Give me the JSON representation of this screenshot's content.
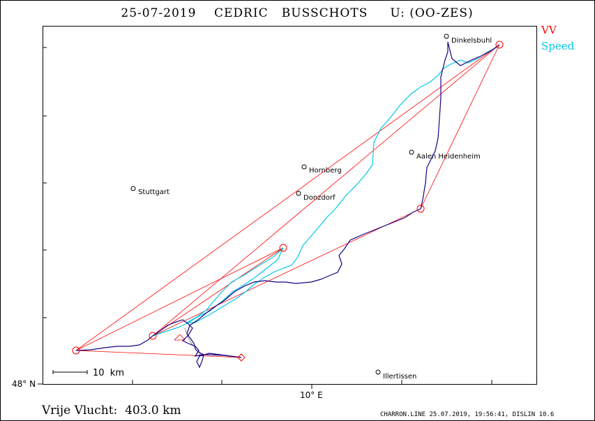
{
  "title": "25-07-2019    CEDRIC   BUSSCHOTS     U: (OO-ZES)",
  "legend": {
    "vv": "VV",
    "speed": "Speed",
    "vv_color": "#ff0000",
    "speed_color": "#00c8e6"
  },
  "axes": {
    "lat_label": "48° N",
    "lon_label": "10° E"
  },
  "scale_label": "10  km",
  "distance_label": "Vrije Vlucht:  403.0 km",
  "footer": "CHARRON.LINE 25.07.2019, 19:56:41, DISLIN 10.6",
  "cities": [
    {
      "name": "Dinkelsbuhl"
    },
    {
      "name": "Aalen Heidenheim"
    },
    {
      "name": "Hornberg"
    },
    {
      "name": "Stuttgart"
    },
    {
      "name": "Donzdorf"
    },
    {
      "name": "Illertissen"
    }
  ],
  "colors": {
    "track": "#1a0080",
    "speed_track": "#00c8e6",
    "turnpoint": "#ff0000",
    "gray_track": "#909090"
  }
}
